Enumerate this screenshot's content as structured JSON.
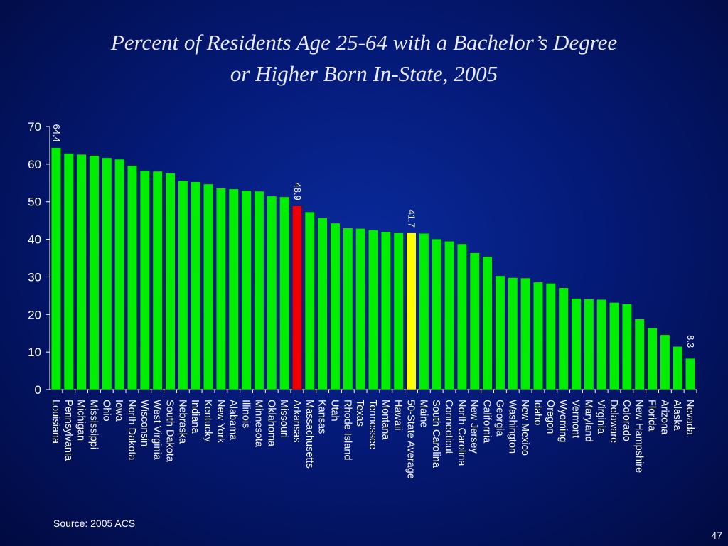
{
  "slide": {
    "source_text": "Source:  2005 ACS",
    "page_number": "47"
  },
  "chart_data": {
    "type": "bar",
    "title_line1": "Percent of Residents Age 25-64 with a Bachelor’s Degree",
    "title_line2": "or Higher Born In-State, 2005",
    "ylim": [
      0,
      70
    ],
    "yticks": [
      0,
      10,
      20,
      30,
      40,
      50,
      60,
      70
    ],
    "grid": false,
    "colors": {
      "default": "#00ee00",
      "highlight": "#ee0000",
      "average": "#ffff00"
    },
    "categories": [
      "Louisiana",
      "Pennsylvania",
      "Michigan",
      "Mississippi",
      "Ohio",
      "Iowa",
      "North Dakota",
      "Wisconsin",
      "West Virginia",
      "South Dakota",
      "Nebraska",
      "Indiana",
      "Kentucky",
      "New York",
      "Alabama",
      "Illinois",
      "Minnesota",
      "Oklahoma",
      "Missouri",
      "Arkansas",
      "Massachusetts",
      "Kansas",
      "Utah",
      "Rhode Island",
      "Texas",
      "Tennessee",
      "Montana",
      "Hawaii",
      "50-State Average",
      "Maine",
      "South Carolina",
      "Connecticut",
      "North Carolina",
      "New Jersey",
      "California",
      "Georgia",
      "Washington",
      "New Mexico",
      "Idaho",
      "Oregon",
      "Wyoming",
      "Vermont",
      "Maryland",
      "Virginia",
      "Delaware",
      "Colorado",
      "New Hampshire",
      "Florida",
      "Arizona",
      "Alaska",
      "Nevada"
    ],
    "values": [
      64.4,
      62.9,
      62.6,
      62.3,
      61.7,
      61.3,
      59.6,
      58.3,
      58.1,
      57.6,
      55.6,
      55.3,
      54.7,
      53.6,
      53.4,
      53.0,
      52.8,
      51.5,
      51.3,
      48.9,
      47.3,
      45.7,
      44.3,
      43.0,
      42.9,
      42.5,
      42.0,
      41.7,
      41.7,
      41.6,
      40.1,
      39.5,
      38.8,
      36.4,
      35.4,
      30.3,
      29.8,
      29.7,
      28.6,
      28.3,
      27.1,
      24.3,
      24.1,
      24.0,
      23.2,
      22.8,
      18.8,
      16.4,
      14.6,
      11.5,
      8.3
    ],
    "highlight_category": "Arkansas",
    "average_category": "50-State Average",
    "data_labels": [
      {
        "category": "Louisiana",
        "text": "64.4"
      },
      {
        "category": "Arkansas",
        "text": "48.9"
      },
      {
        "category": "50-State Average",
        "text": "41.7"
      },
      {
        "category": "Nevada",
        "text": "8.3"
      }
    ]
  }
}
